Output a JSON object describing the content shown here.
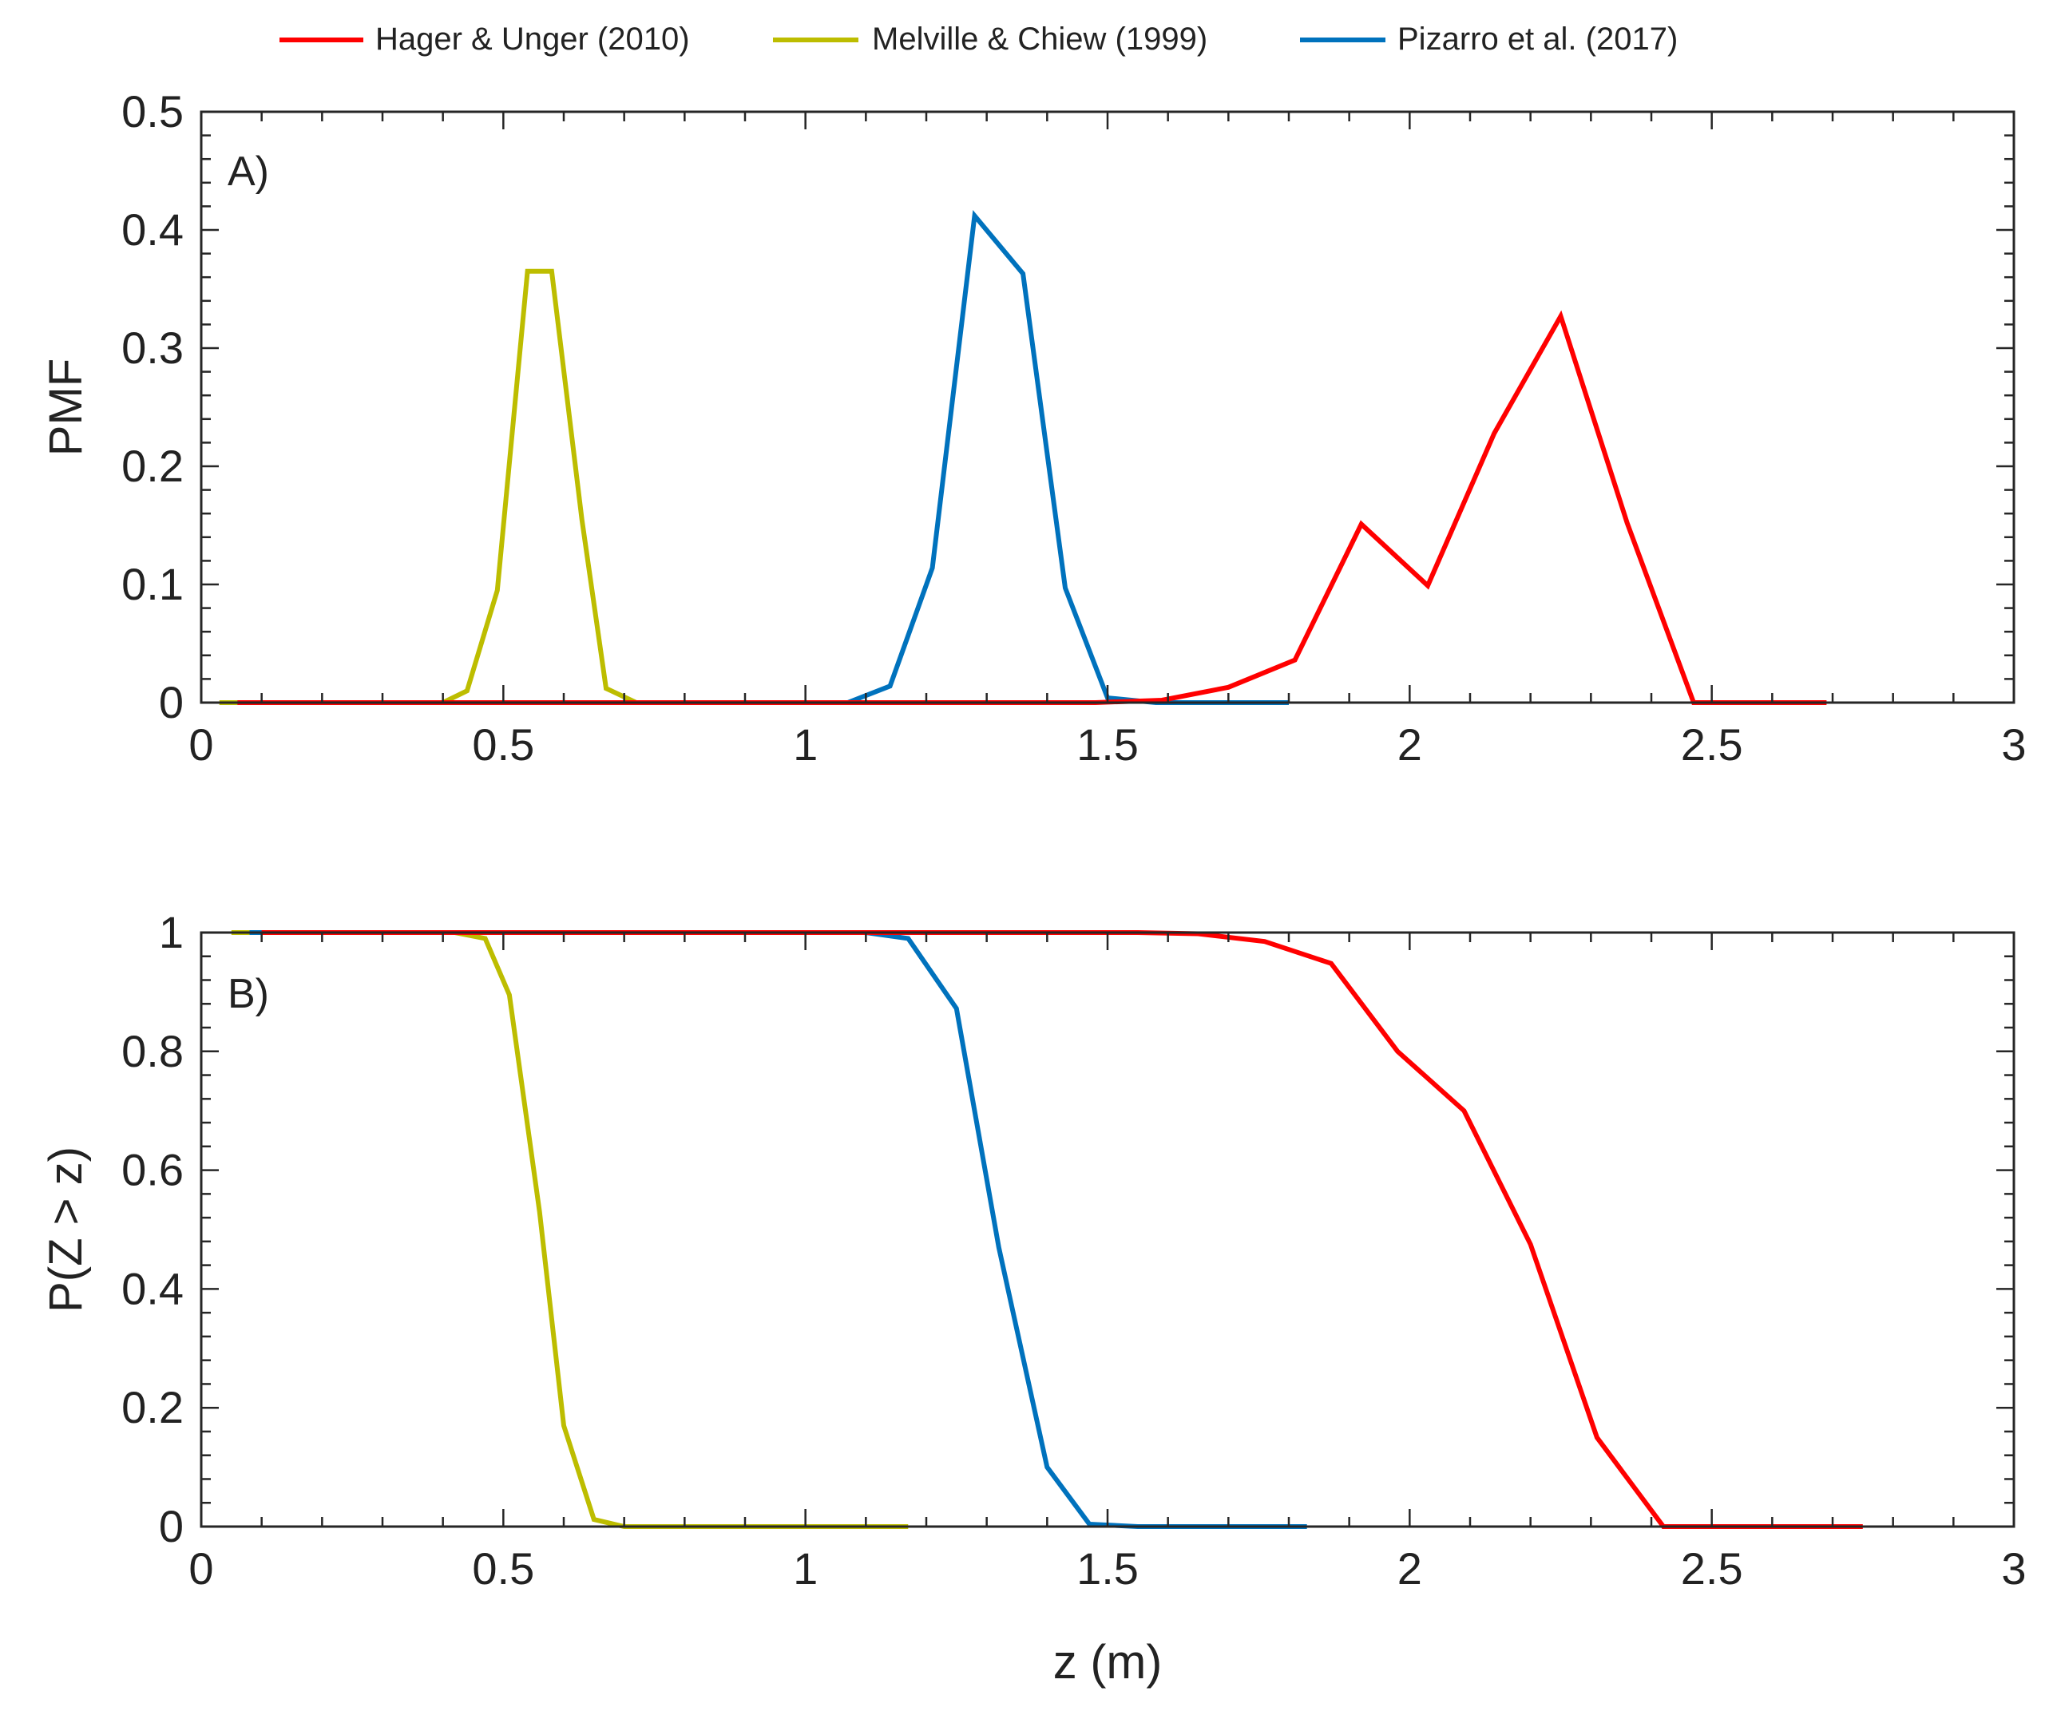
{
  "figure": {
    "xlabel": "z (m)"
  },
  "legend": {
    "position": "top-center",
    "entries": [
      {
        "name": "Hager & Unger (2010)",
        "color": "#ff0000"
      },
      {
        "name": "Melville & Chiew (1999)",
        "color": "#bdbd00"
      },
      {
        "name": "Pizarro et al. (2017)",
        "color": "#0072bd"
      }
    ]
  },
  "chart_data": [
    {
      "type": "line",
      "panel": "A)",
      "ylabel": "PMF",
      "xlabel": "",
      "xlim": [
        0,
        3
      ],
      "ylim": [
        0,
        0.5
      ],
      "xticks": [
        0,
        0.5,
        1,
        1.5,
        2,
        2.5,
        3
      ],
      "xticklabels": [
        "0",
        "0.5",
        "1",
        "1.5",
        "2",
        "2.5",
        "3"
      ],
      "yticks": [
        0,
        0.1,
        0.2,
        0.3,
        0.4,
        0.5
      ],
      "yticklabels": [
        "0",
        "0.1",
        "0.2",
        "0.3",
        "0.4",
        "0.5"
      ],
      "grid": false,
      "series": [
        {
          "name": "Melville & Chiew (1999)",
          "color": "#bdbd00",
          "x": [
            0.03,
            0.4,
            0.44,
            0.49,
            0.54,
            0.58,
            0.63,
            0.67,
            0.72,
            1.05
          ],
          "y": [
            0,
            0,
            0.01,
            0.095,
            0.365,
            0.365,
            0.155,
            0.012,
            0,
            0
          ]
        },
        {
          "name": "Pizarro et al. (2017)",
          "color": "#0072bd",
          "x": [
            0.06,
            1.07,
            1.14,
            1.21,
            1.28,
            1.36,
            1.43,
            1.5,
            1.58,
            1.8
          ],
          "y": [
            0,
            0,
            0.014,
            0.114,
            0.412,
            0.363,
            0.097,
            0.004,
            0,
            0
          ]
        },
        {
          "name": "Hager & Unger (2010)",
          "color": "#ff0000",
          "x": [
            0.06,
            1.48,
            1.59,
            1.7,
            1.81,
            1.92,
            2.03,
            2.14,
            2.25,
            2.36,
            2.47,
            2.69
          ],
          "y": [
            0,
            0,
            0.002,
            0.013,
            0.036,
            0.151,
            0.099,
            0.228,
            0.327,
            0.152,
            0,
            0
          ]
        }
      ]
    },
    {
      "type": "line",
      "panel": "B)",
      "ylabel": "P(Z > z)",
      "xlabel": "z (m)",
      "xlim": [
        0,
        3
      ],
      "ylim": [
        0,
        1
      ],
      "xticks": [
        0,
        0.5,
        1,
        1.5,
        2,
        2.5,
        3
      ],
      "xticklabels": [
        "0",
        "0.5",
        "1",
        "1.5",
        "2",
        "2.5",
        "3"
      ],
      "yticks": [
        0,
        0.2,
        0.4,
        0.6,
        0.8,
        1
      ],
      "yticklabels": [
        "0",
        "0.2",
        "0.4",
        "0.6",
        "0.8",
        "1"
      ],
      "grid": false,
      "series": [
        {
          "name": "Melville & Chiew (1999)",
          "color": "#bdbd00",
          "x": [
            0.05,
            0.42,
            0.47,
            0.51,
            0.56,
            0.6,
            0.65,
            0.7,
            1.17
          ],
          "y": [
            1,
            1,
            0.99,
            0.895,
            0.53,
            0.17,
            0.012,
            0,
            0
          ]
        },
        {
          "name": "Pizarro et al. (2017)",
          "color": "#0072bd",
          "x": [
            0.08,
            1.1,
            1.17,
            1.25,
            1.32,
            1.4,
            1.47,
            1.55,
            1.83
          ],
          "y": [
            1,
            1,
            0.99,
            0.872,
            0.47,
            0.1,
            0.004,
            0,
            0
          ]
        },
        {
          "name": "Hager & Unger (2010)",
          "color": "#ff0000",
          "x": [
            0.1,
            1.55,
            1.65,
            1.76,
            1.87,
            1.98,
            2.09,
            2.2,
            2.31,
            2.42,
            2.75
          ],
          "y": [
            1,
            1,
            0.998,
            0.985,
            0.948,
            0.8,
            0.7,
            0.475,
            0.15,
            0,
            0
          ]
        }
      ]
    }
  ]
}
